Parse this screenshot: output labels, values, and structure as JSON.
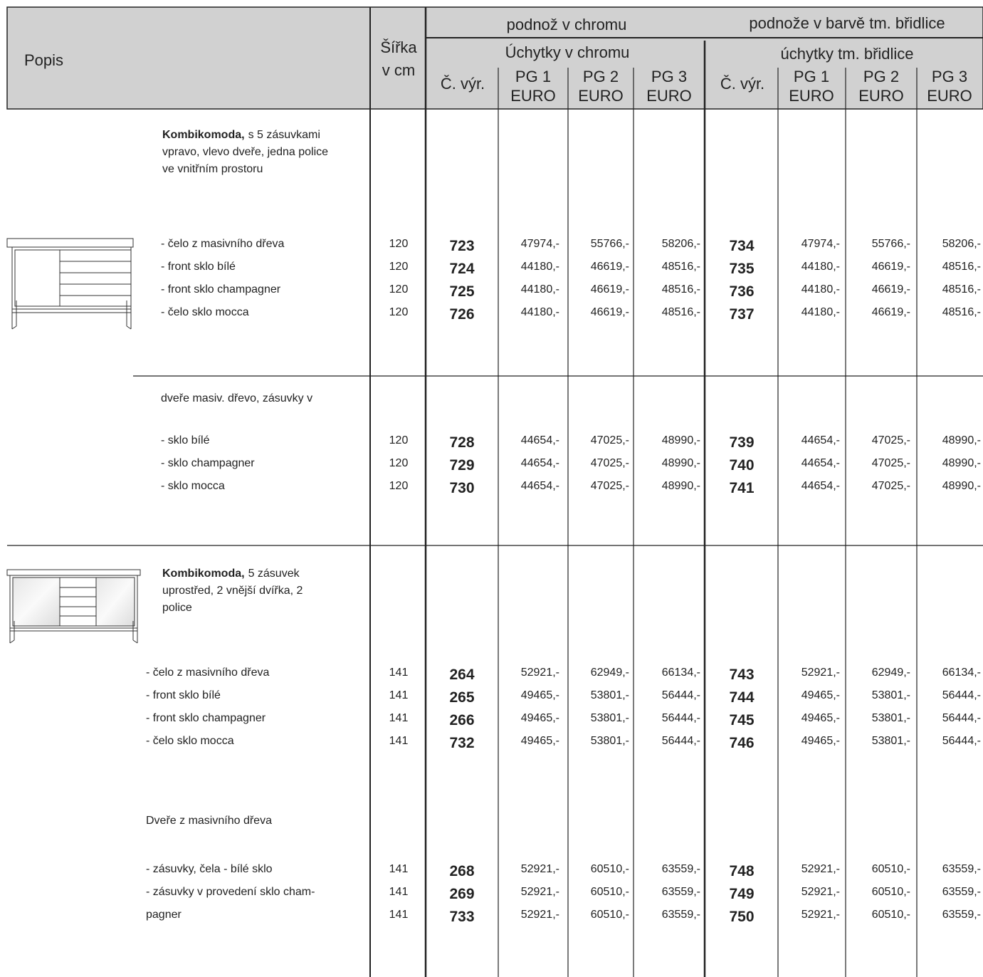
{
  "header": {
    "popis": "Popis",
    "width_label": "Šířka",
    "width_unit": "v cm",
    "group1": "podnož v chromu",
    "group2": "podnože v barvě tm. břidlice",
    "sub1": "Úchytky v chromu",
    "sub2": "úchytky tm. břidlice",
    "code": "Č. výr.",
    "pg": [
      "PG 1",
      "PG 2",
      "PG 3"
    ],
    "currency": "EURO"
  },
  "sections": [
    {
      "bold": "Kombikomoda,",
      "lines": [
        "s 5 zásuvkami",
        "vpravo, vlevo dveře, jedna police",
        "ve vnitřním prostoru"
      ],
      "rows": [
        {
          "label": "- čelo z masivního dřeva",
          "width": 120,
          "chrome": {
            "code": 723,
            "prices": [
              "47974,-",
              "55766,-",
              "58206,-"
            ]
          },
          "slate": {
            "code": 734,
            "prices": [
              "47974,-",
              "55766,-",
              "58206,-"
            ]
          }
        },
        {
          "label": "- front sklo bílé",
          "width": 120,
          "chrome": {
            "code": 724,
            "prices": [
              "44180,-",
              "46619,-",
              "48516,-"
            ]
          },
          "slate": {
            "code": 735,
            "prices": [
              "44180,-",
              "46619,-",
              "48516,-"
            ]
          }
        },
        {
          "label": "- front sklo champagner",
          "width": 120,
          "chrome": {
            "code": 725,
            "prices": [
              "44180,-",
              "46619,-",
              "48516,-"
            ]
          },
          "slate": {
            "code": 736,
            "prices": [
              "44180,-",
              "46619,-",
              "48516,-"
            ]
          }
        },
        {
          "label": "- čelo sklo mocca",
          "width": 120,
          "chrome": {
            "code": 726,
            "prices": [
              "44180,-",
              "46619,-",
              "48516,-"
            ]
          },
          "slate": {
            "code": 737,
            "prices": [
              "44180,-",
              "46619,-",
              "48516,-"
            ]
          }
        }
      ]
    },
    {
      "lines": [
        "dveře masiv. dřevo, zásuvky v"
      ],
      "rows": [
        {
          "label": "- sklo bílé",
          "width": 120,
          "chrome": {
            "code": 728,
            "prices": [
              "44654,-",
              "47025,-",
              "48990,-"
            ]
          },
          "slate": {
            "code": 739,
            "prices": [
              "44654,-",
              "47025,-",
              "48990,-"
            ]
          }
        },
        {
          "label": "- sklo champagner",
          "width": 120,
          "chrome": {
            "code": 729,
            "prices": [
              "44654,-",
              "47025,-",
              "48990,-"
            ]
          },
          "slate": {
            "code": 740,
            "prices": [
              "44654,-",
              "47025,-",
              "48990,-"
            ]
          }
        },
        {
          "label": "- sklo mocca",
          "width": 120,
          "chrome": {
            "code": 730,
            "prices": [
              "44654,-",
              "47025,-",
              "48990,-"
            ]
          },
          "slate": {
            "code": 741,
            "prices": [
              "44654,-",
              "47025,-",
              "48990,-"
            ]
          }
        }
      ]
    },
    {
      "bold": "Kombikomoda,",
      "lines": [
        "5 zásuvek",
        "uprostřed, 2 vnější dvířka, 2",
        "police"
      ],
      "rows": [
        {
          "label": "- čelo z masivního dřeva",
          "width": 141,
          "chrome": {
            "code": 264,
            "prices": [
              "52921,-",
              "62949,-",
              "66134,-"
            ]
          },
          "slate": {
            "code": 743,
            "prices": [
              "52921,-",
              "62949,-",
              "66134,-"
            ]
          }
        },
        {
          "label": "- front sklo bílé",
          "width": 141,
          "chrome": {
            "code": 265,
            "prices": [
              "49465,-",
              "53801,-",
              "56444,-"
            ]
          },
          "slate": {
            "code": 744,
            "prices": [
              "49465,-",
              "53801,-",
              "56444,-"
            ]
          }
        },
        {
          "label": "- front sklo champagner",
          "width": 141,
          "chrome": {
            "code": 266,
            "prices": [
              "49465,-",
              "53801,-",
              "56444,-"
            ]
          },
          "slate": {
            "code": 745,
            "prices": [
              "49465,-",
              "53801,-",
              "56444,-"
            ]
          }
        },
        {
          "label": "- čelo sklo mocca",
          "width": 141,
          "chrome": {
            "code": 732,
            "prices": [
              "49465,-",
              "53801,-",
              "56444,-"
            ]
          },
          "slate": {
            "code": 746,
            "prices": [
              "49465,-",
              "53801,-",
              "56444,-"
            ]
          }
        }
      ]
    },
    {
      "lines": [
        "Dveře z masivního dřeva"
      ],
      "rows": [
        {
          "label": "- zásuvky, čela - bílé sklo",
          "width": 141,
          "chrome": {
            "code": 268,
            "prices": [
              "52921,-",
              "60510,-",
              "63559,-"
            ]
          },
          "slate": {
            "code": 748,
            "prices": [
              "52921,-",
              "60510,-",
              "63559,-"
            ]
          }
        },
        {
          "label": "- zásuvky v provedení sklo cham-",
          "width": 141,
          "chrome": {
            "code": 269,
            "prices": [
              "52921,-",
              "60510,-",
              "63559,-"
            ]
          },
          "slate": {
            "code": 749,
            "prices": [
              "52921,-",
              "60510,-",
              "63559,-"
            ]
          }
        },
        {
          "label": "pagner",
          "width": 141,
          "chrome": {
            "code": 733,
            "prices": [
              "52921,-",
              "60510,-",
              "63559,-"
            ]
          },
          "slate": {
            "code": 750,
            "prices": [
              "52921,-",
              "60510,-",
              "63559,-"
            ]
          }
        }
      ]
    }
  ]
}
